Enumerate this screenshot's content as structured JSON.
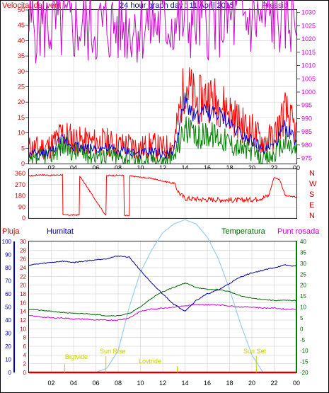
{
  "header": {
    "left_title": "Velocitat del vent",
    "center_title": "24 hour graph day : 11 Abril 2015",
    "right_title": "Pressió"
  },
  "bottom_header": {
    "rain": "Pluja",
    "humidity": "Humitat",
    "temperature": "Temperatura",
    "dew_point": "Punt rosada"
  },
  "compass": [
    "N",
    "W",
    "S",
    "E",
    "N"
  ],
  "sun_labels": {
    "dawn": "Bigtvide",
    "sunrise": "Sun Rise",
    "noon": "Lovtride",
    "sunset": "Sun Set"
  },
  "colors": {
    "wind_gust": "#ff0000",
    "wind_avg": "#0000cc",
    "wind_min": "#008000",
    "pressure": "#cc00cc",
    "direction": "#ff0000",
    "rain": "#cc0000",
    "humidity": "#000099",
    "temperature": "#006600",
    "dew_point": "#cc00cc",
    "solar": "#99ccee",
    "sun_marker": "#cccc00"
  },
  "chart_data": [
    {
      "type": "line",
      "name": "wind-pressure",
      "x_ticks": [
        "02",
        "04",
        "06",
        "08",
        "10",
        "12",
        "14",
        "16",
        "18",
        "20",
        "22",
        "00"
      ],
      "y_left_ticks": [
        0,
        5,
        10,
        15,
        20,
        25,
        30,
        35,
        40,
        45,
        50
      ],
      "y_left_range": [
        0,
        50
      ],
      "y_right_ticks": [
        975,
        980,
        985,
        990,
        995,
        1000,
        1005,
        1010,
        1015,
        1020,
        1025,
        1030
      ],
      "y_right_range": [
        973,
        1031
      ],
      "hours": [
        0,
        1,
        2,
        3,
        4,
        5,
        6,
        7,
        8,
        9,
        10,
        11,
        12,
        13,
        14,
        15,
        16,
        17,
        18,
        19,
        20,
        21,
        22,
        23,
        24
      ],
      "series": [
        {
          "key": "gust",
          "values": [
            5,
            5,
            6,
            10,
            8,
            7,
            7,
            7,
            6,
            6,
            5,
            6,
            5,
            6,
            27,
            20,
            22,
            20,
            17,
            13,
            11,
            7,
            9,
            17,
            10
          ]
        },
        {
          "key": "avg",
          "values": [
            3,
            3,
            4,
            8,
            6,
            5,
            5,
            5,
            4,
            4,
            3,
            4,
            3,
            4,
            20,
            15,
            17,
            16,
            13,
            10,
            8,
            4,
            6,
            12,
            7
          ]
        },
        {
          "key": "min",
          "values": [
            0,
            2,
            3,
            6,
            4,
            3,
            3,
            3,
            2,
            2,
            1,
            2,
            1,
            2,
            12,
            8,
            10,
            9,
            7,
            5,
            4,
            1,
            3,
            7,
            4
          ]
        },
        {
          "key": "pressure",
          "values": [
            1025.5,
            1025.3,
            1025.0,
            1024.8,
            1024.6,
            1024.5,
            1024.6,
            1024.8,
            1025.0,
            1025.3,
            1025.5,
            1025.8,
            1026.0,
            1026.4,
            1026.6,
            1026.8,
            1027.0,
            1027.1,
            1027.2,
            1027.3,
            1027.4,
            1027.6,
            1028.0,
            1028.4,
            1029.0
          ]
        }
      ]
    },
    {
      "type": "line",
      "name": "wind-direction",
      "y_ticks": [
        0,
        90,
        180,
        270,
        360
      ],
      "y_range": [
        0,
        360
      ],
      "hours": [
        0,
        1,
        2,
        3,
        3.05,
        4.5,
        4.55,
        6.9,
        6.95,
        7.2,
        8.5,
        8.55,
        9.0,
        9.05,
        10,
        11,
        12,
        13,
        13.5,
        14,
        15,
        16,
        17,
        18,
        19,
        20,
        21,
        21.5,
        22,
        22.5,
        23,
        24
      ],
      "values": [
        340,
        350,
        345,
        350,
        25,
        25,
        340,
        20,
        340,
        345,
        345,
        20,
        20,
        340,
        330,
        320,
        300,
        280,
        200,
        160,
        155,
        150,
        150,
        145,
        145,
        150,
        165,
        180,
        330,
        310,
        180,
        170
      ]
    },
    {
      "type": "line",
      "name": "temp-humidity",
      "x_ticks": [
        "02",
        "04",
        "06",
        "08",
        "10",
        "12",
        "14",
        "16",
        "18",
        "20",
        "22",
        "00"
      ],
      "y_rain_ticks": [
        0,
        2,
        4,
        6,
        8,
        10,
        12,
        14,
        16,
        18,
        20,
        22,
        24,
        26,
        28,
        30
      ],
      "y_rain_range": [
        0,
        30
      ],
      "y_humidity_ticks": [
        0,
        10,
        20,
        30,
        40,
        50,
        60,
        70,
        80,
        90,
        100
      ],
      "y_humidity_range": [
        0,
        100
      ],
      "y_temp_ticks": [
        -20,
        -15,
        -10,
        -5,
        0,
        5,
        10,
        15,
        20,
        25,
        30,
        35,
        40
      ],
      "y_temp_range": [
        -20,
        40
      ],
      "sun_marker_hours": {
        "dawn": 3.2,
        "sunrise": 6.9,
        "noon": 13.3,
        "sunset": 20.4
      },
      "hours": [
        0,
        1,
        2,
        3,
        4,
        5,
        6,
        7,
        8,
        9,
        10,
        11,
        12,
        13,
        14,
        15,
        16,
        17,
        18,
        19,
        20,
        21,
        22,
        23,
        24
      ],
      "series": [
        {
          "key": "humidity",
          "values": [
            82,
            83,
            84,
            85,
            84,
            85,
            86,
            87,
            89,
            88,
            78,
            68,
            60,
            52,
            47,
            55,
            60,
            63,
            68,
            73,
            76,
            78,
            80,
            82,
            81
          ]
        },
        {
          "key": "temperature",
          "values": [
            9,
            8.5,
            8,
            7.5,
            7,
            7,
            6.5,
            6,
            6,
            7,
            10,
            14,
            17,
            19,
            21,
            19,
            18,
            18,
            17,
            15,
            14,
            13.5,
            13,
            13,
            13
          ]
        },
        {
          "key": "dew_point",
          "values": [
            6,
            5.5,
            5,
            5,
            4.5,
            4.5,
            4,
            4,
            4,
            5,
            8,
            9,
            9.5,
            10,
            10.5,
            11,
            11,
            11,
            10.5,
            10,
            10,
            9.5,
            9.5,
            9,
            9
          ]
        },
        {
          "key": "solar",
          "values": [
            0,
            0,
            0,
            0,
            0,
            0,
            0,
            1,
            5,
            15,
            23,
            28,
            32,
            34,
            35,
            34,
            31,
            26,
            19,
            11,
            4,
            0,
            0,
            0,
            0
          ]
        },
        {
          "key": "rain",
          "values": [
            0,
            0,
            0,
            0,
            0,
            0,
            0,
            0,
            0,
            0,
            0,
            0,
            0,
            0,
            0,
            0,
            0,
            0,
            0,
            0,
            0,
            0,
            0,
            0,
            0
          ]
        }
      ]
    }
  ]
}
